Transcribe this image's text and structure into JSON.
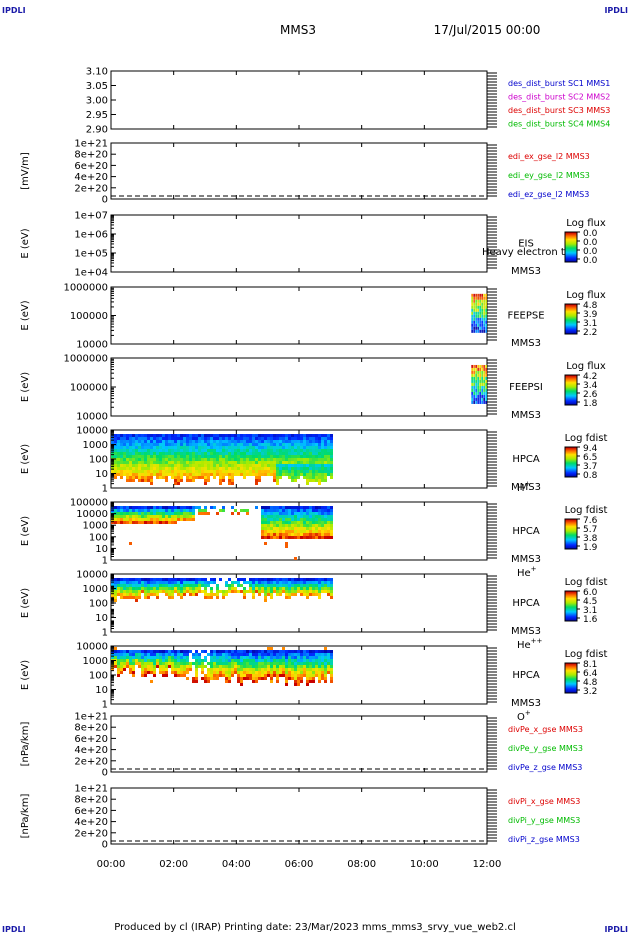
{
  "corners": {
    "top_left": "IPDLI",
    "top_right": "IPDLI",
    "bottom_left": "IPDLI",
    "bottom_right": "IPDLI"
  },
  "header": {
    "title": "MMS3",
    "date": "17/Jul/2015 00:00"
  },
  "footer": {
    "text": "Produced by cl (IRAP)   Printing date: 23/Mar/2023   mms_mms3_srvy_vue_web2.cl"
  },
  "time_axis": {
    "ticks": [
      "00:00",
      "02:00",
      "04:00",
      "06:00",
      "08:00",
      "10:00",
      "12:00"
    ]
  },
  "chart_data": [
    {
      "id": "p1",
      "type": "line",
      "ylabel": "",
      "ylim": [
        2.9,
        3.1
      ],
      "log": false,
      "yticks": [
        "3.10",
        "3.05",
        "3.00",
        "2.95",
        "2.90"
      ],
      "legend": [
        {
          "text": "des_dist_burst SC1 MMS1",
          "color": "#0000cc"
        },
        {
          "text": "des_dist_burst SC2 MMS2",
          "color": "#cc00cc"
        },
        {
          "text": "des_dist_burst SC3 MMS3",
          "color": "#dd0000"
        },
        {
          "text": "des_dist_burst SC4 MMS4",
          "color": "#00bb00"
        }
      ],
      "zero_line": false
    },
    {
      "id": "p2",
      "type": "line",
      "ylabel": "[mV/m]",
      "ylim": [
        0,
        1e+21
      ],
      "log": false,
      "yticks": [
        "1e+21",
        "8e+20",
        "6e+20",
        "4e+20",
        "2e+20",
        "0"
      ],
      "legend": [
        {
          "text": "edi_ex_gse_l2 MMS3",
          "color": "#dd0000"
        },
        {
          "text": "edi_ey_gse_l2 MMS3",
          "color": "#00bb00"
        },
        {
          "text": "edi_ez_gse_l2 MMS3",
          "color": "#0000cc"
        }
      ],
      "zero_line": true
    },
    {
      "id": "p3",
      "type": "heatmap",
      "ylabel": "E (eV)",
      "log": true,
      "ylim": [
        10000.0,
        10000000.0
      ],
      "yticks": [
        "1e+07",
        "1e+06",
        "1e+05",
        "1e+04"
      ],
      "instrument": [
        "EIS",
        "MMS3"
      ],
      "overlay_text": "Heavy electron to",
      "cbar": {
        "title": "Log flux",
        "ticks": [
          "0.0",
          "0.0",
          "0.0",
          "0.0"
        ]
      },
      "blocks": []
    },
    {
      "id": "p4",
      "type": "heatmap",
      "ylabel": "E (eV)",
      "log": true,
      "ylim": [
        10000.0,
        1000000.0
      ],
      "yticks": [
        "1000000",
        "100000",
        "10000"
      ],
      "instrument": [
        "FEEPSE",
        "MMS3"
      ],
      "cbar": {
        "title": "Log flux",
        "ticks": [
          "4.8",
          "3.9",
          "3.1",
          "2.2"
        ]
      },
      "blocks": [
        {
          "kind": "stripes",
          "t0": 11.5,
          "t1": 11.95
        }
      ]
    },
    {
      "id": "p5",
      "type": "heatmap",
      "ylabel": "E (eV)",
      "log": true,
      "ylim": [
        10000.0,
        1000000.0
      ],
      "yticks": [
        "1000000",
        "100000",
        "10000"
      ],
      "instrument": [
        "FEEPSI",
        "MMS3"
      ],
      "cbar": {
        "title": "Log flux",
        "ticks": [
          "4.2",
          "3.4",
          "2.6",
          "1.8"
        ]
      },
      "blocks": [
        {
          "kind": "stripes",
          "t0": 11.5,
          "t1": 11.95
        }
      ]
    },
    {
      "id": "p6",
      "type": "heatmap",
      "ylabel": "E (eV)",
      "log": true,
      "ylim": [
        1,
        10000.0
      ],
      "yticks": [
        "10000",
        "1000",
        "100",
        "10",
        "1"
      ],
      "instrument": [
        "HPCA",
        "MMS3"
      ],
      "species": "H",
      "species_sup": "+",
      "cbar": {
        "title": "Log fdist",
        "ticks": [
          "9.4",
          "6.5",
          "3.7",
          "0.8"
        ]
      },
      "blocks": [
        {
          "kind": "hpca_h",
          "t0": 0,
          "t1": 7.0
        }
      ]
    },
    {
      "id": "p7",
      "type": "heatmap",
      "ylabel": "E (eV)",
      "log": true,
      "ylim": [
        1,
        100000.0
      ],
      "yticks": [
        "100000",
        "10000",
        "1000",
        "100",
        "10",
        "1"
      ],
      "instrument": [
        "HPCA",
        "MMS3"
      ],
      "species": "He",
      "species_sup": "+",
      "cbar": {
        "title": "Log fdist",
        "ticks": [
          "7.6",
          "5.7",
          "3.8",
          "1.9"
        ]
      },
      "blocks": [
        {
          "kind": "hpca_hep",
          "t0": 0,
          "t1": 7.0
        }
      ]
    },
    {
      "id": "p8",
      "type": "heatmap",
      "ylabel": "E (eV)",
      "log": true,
      "ylim": [
        1,
        100000.0
      ],
      "yticks": [
        "10000",
        "1000",
        "100",
        "10",
        "1"
      ],
      "instrument": [
        "HPCA",
        "MMS3"
      ],
      "species": "He",
      "species_sup": "++",
      "cbar": {
        "title": "Log fdist",
        "ticks": [
          "6.0",
          "4.5",
          "3.1",
          "1.6"
        ]
      },
      "blocks": [
        {
          "kind": "hpca_hepp",
          "t0": 0,
          "t1": 7.0
        }
      ]
    },
    {
      "id": "p9",
      "type": "heatmap",
      "ylabel": "E (eV)",
      "log": true,
      "ylim": [
        1,
        10000.0
      ],
      "yticks": [
        "10000",
        "1000",
        "100",
        "10",
        "1"
      ],
      "instrument": [
        "HPCA",
        "MMS3"
      ],
      "species": "O",
      "species_sup": "+",
      "cbar": {
        "title": "Log fdist",
        "ticks": [
          "8.1",
          "6.4",
          "4.8",
          "3.2"
        ]
      },
      "blocks": [
        {
          "kind": "hpca_o",
          "t0": 0,
          "t1": 7.0
        }
      ]
    },
    {
      "id": "p10",
      "type": "line",
      "ylabel": "[nPa/km]",
      "ylim": [
        0,
        1e+21
      ],
      "log": false,
      "yticks": [
        "1e+21",
        "8e+20",
        "6e+20",
        "4e+20",
        "2e+20",
        "0"
      ],
      "legend": [
        {
          "text": "divPe_x_gse MMS3",
          "color": "#dd0000"
        },
        {
          "text": "divPe_y_gse MMS3",
          "color": "#00bb00"
        },
        {
          "text": "divPe_z_gse MMS3",
          "color": "#0000cc"
        }
      ],
      "zero_line": true
    },
    {
      "id": "p11",
      "type": "line",
      "ylabel": "[nPa/km]",
      "ylim": [
        0,
        1e+21
      ],
      "log": false,
      "yticks": [
        "1e+21",
        "8e+20",
        "6e+20",
        "4e+20",
        "2e+20",
        "0"
      ],
      "legend": [
        {
          "text": "divPi_x_gse MMS3",
          "color": "#dd0000"
        },
        {
          "text": "divPi_y_gse MMS3",
          "color": "#00bb00"
        },
        {
          "text": "divPi_z_gse MMS3",
          "color": "#0000cc"
        }
      ],
      "zero_line": true
    }
  ]
}
